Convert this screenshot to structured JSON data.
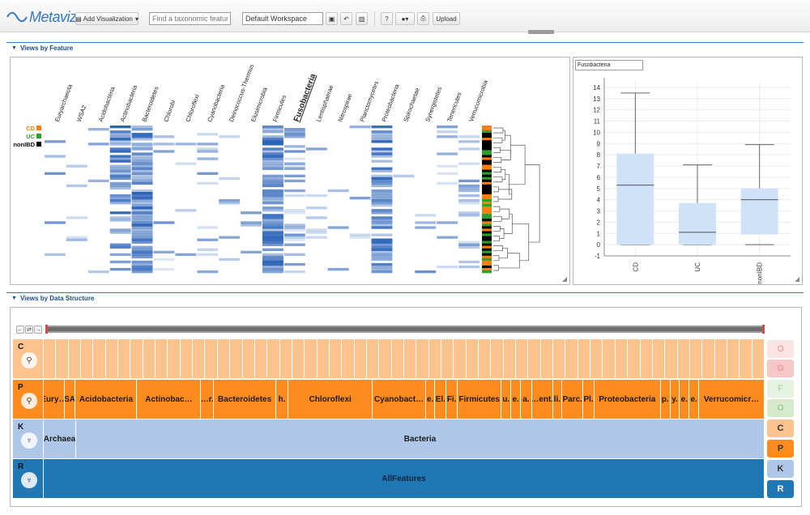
{
  "toolbar": {
    "logo_text": "Metaviz",
    "add_visualization_label": "Add Visualization",
    "search_placeholder": "Find a taxonomic feature",
    "workspace_value": "Default Workspace",
    "upload_label": "Upload",
    "help_label": "?",
    "icons": [
      "save-icon",
      "undo-icon",
      "delete-icon",
      "help-icon",
      "settings-icon",
      "print-icon"
    ]
  },
  "feature_section": {
    "title": "Views by Feature",
    "heatmap": {
      "columns": [
        "Euryarchaeota",
        "WSA2",
        "Acidobacteria",
        "Actinobacteria",
        "Bacteroidetes",
        "Chlorobi",
        "Chloroflexi",
        "Cyanobacteria",
        "Deinococcus-Thermus",
        "Elusimicrobia",
        "Firmicutes",
        "Fusobacteria",
        "Lentisphaerae",
        "Nitrospirae",
        "Planctomycetes",
        "Proteobacteria",
        "Spirochaetae",
        "Synergistetes",
        "Tenericutes",
        "Verrucomicrobia"
      ],
      "highlighted_column": "Fusobacteria",
      "legend": [
        {
          "label": "CD",
          "color": "#ff7f0e"
        },
        {
          "label": "UC",
          "color": "#2ca02c"
        },
        {
          "label": "nonIBD",
          "color": "#000000"
        }
      ],
      "column_density": [
        0.08,
        0.05,
        0.06,
        0.55,
        0.85,
        0.04,
        0.05,
        0.15,
        0.1,
        0.06,
        0.9,
        0.45,
        0.12,
        0.05,
        0.06,
        0.75,
        0.1,
        0.08,
        0.15,
        0.3
      ]
    },
    "boxplot": {
      "feature_value": "Fusobacteria",
      "chart_data": {
        "type": "box",
        "categories": [
          "CD",
          "UC",
          "nonIBD"
        ],
        "yticks": [
          -1,
          0,
          1,
          2,
          3,
          4,
          5,
          6,
          7,
          8,
          9,
          10,
          11,
          12,
          13,
          14
        ],
        "ylim": [
          -1,
          14.5
        ],
        "series": [
          {
            "category": "CD",
            "min": 0,
            "q1": 0,
            "median": 5.3,
            "q3": 8.1,
            "max": 13.5
          },
          {
            "category": "UC",
            "min": 0,
            "q1": 0,
            "median": 1.1,
            "q3": 3.7,
            "max": 7.1
          },
          {
            "category": "nonIBD",
            "min": 0,
            "q1": 0.9,
            "median": 4.0,
            "q3": 5.0,
            "max": 8.9
          }
        ],
        "box_color": "#cfe2f8",
        "grid": true
      }
    }
  },
  "structure_section": {
    "title": "Views by Data Structure",
    "levels": [
      {
        "key": "C",
        "color": "#fdc38f",
        "cell_count": 58
      },
      {
        "key": "P",
        "color": "#fd8b1e",
        "cells": [
          {
            "label": "Eury…",
            "w": 26
          },
          {
            "label": "SA",
            "w": 14
          },
          {
            "label": "Acidobacteria",
            "w": 77
          },
          {
            "label": "Actinobac…",
            "w": 80
          },
          {
            "label": "…r.",
            "w": 16
          },
          {
            "label": "Bacteroidetes",
            "w": 78
          },
          {
            "label": "h.",
            "w": 15
          },
          {
            "label": "Chloroflexi",
            "w": 106
          },
          {
            "label": "Cyanobact…",
            "w": 66
          },
          {
            "label": "e.",
            "w": 12
          },
          {
            "label": "El.",
            "w": 14
          },
          {
            "label": "Fi.",
            "w": 14
          },
          {
            "label": "Firmicutes",
            "w": 55
          },
          {
            "label": "u.",
            "w": 12
          },
          {
            "label": "e.",
            "w": 12
          },
          {
            "label": "a.",
            "w": 14
          },
          {
            "label": "…ent.",
            "w": 26
          },
          {
            "label": "li.",
            "w": 12
          },
          {
            "label": "Parc.",
            "w": 26
          },
          {
            "label": "Pl.",
            "w": 14
          },
          {
            "label": "Proteobacteria",
            "w": 83
          },
          {
            "label": "p.",
            "w": 12
          },
          {
            "label": "y.",
            "w": 12
          },
          {
            "label": "e.",
            "w": 12
          },
          {
            "label": "e.",
            "w": 12
          },
          {
            "label": "Verrucomicr…",
            "w": 82
          }
        ]
      },
      {
        "key": "K",
        "color": "#aec7e8",
        "cells": [
          {
            "label": "Archaea",
            "w": 40
          },
          {
            "label": "Bacteria",
            "w": 850
          }
        ]
      },
      {
        "key": "R",
        "color": "#1f77b4",
        "cells": [
          {
            "label": "AllFeatures",
            "w": 890
          }
        ]
      }
    ],
    "level_buttons": [
      {
        "label": "O",
        "bg": "#fbe4e4",
        "fg": "#e2a7a7"
      },
      {
        "label": "G",
        "bg": "#f6c7c7",
        "fg": "#e79b9b"
      },
      {
        "label": "F",
        "bg": "#e6f3e0",
        "fg": "#bcd8b0"
      },
      {
        "label": "O",
        "bg": "#d7ebcc",
        "fg": "#a8c998"
      },
      {
        "label": "C",
        "bg": "#fdc38f",
        "fg": "#333333"
      },
      {
        "label": "P",
        "bg": "#fd8b1e",
        "fg": "#333333"
      },
      {
        "label": "K",
        "bg": "#aec7e8",
        "fg": "#333333"
      },
      {
        "label": "R",
        "bg": "#1f77b4",
        "fg": "#ffffff"
      }
    ],
    "nav_buttons": [
      "←",
      "⇄",
      "→"
    ]
  }
}
